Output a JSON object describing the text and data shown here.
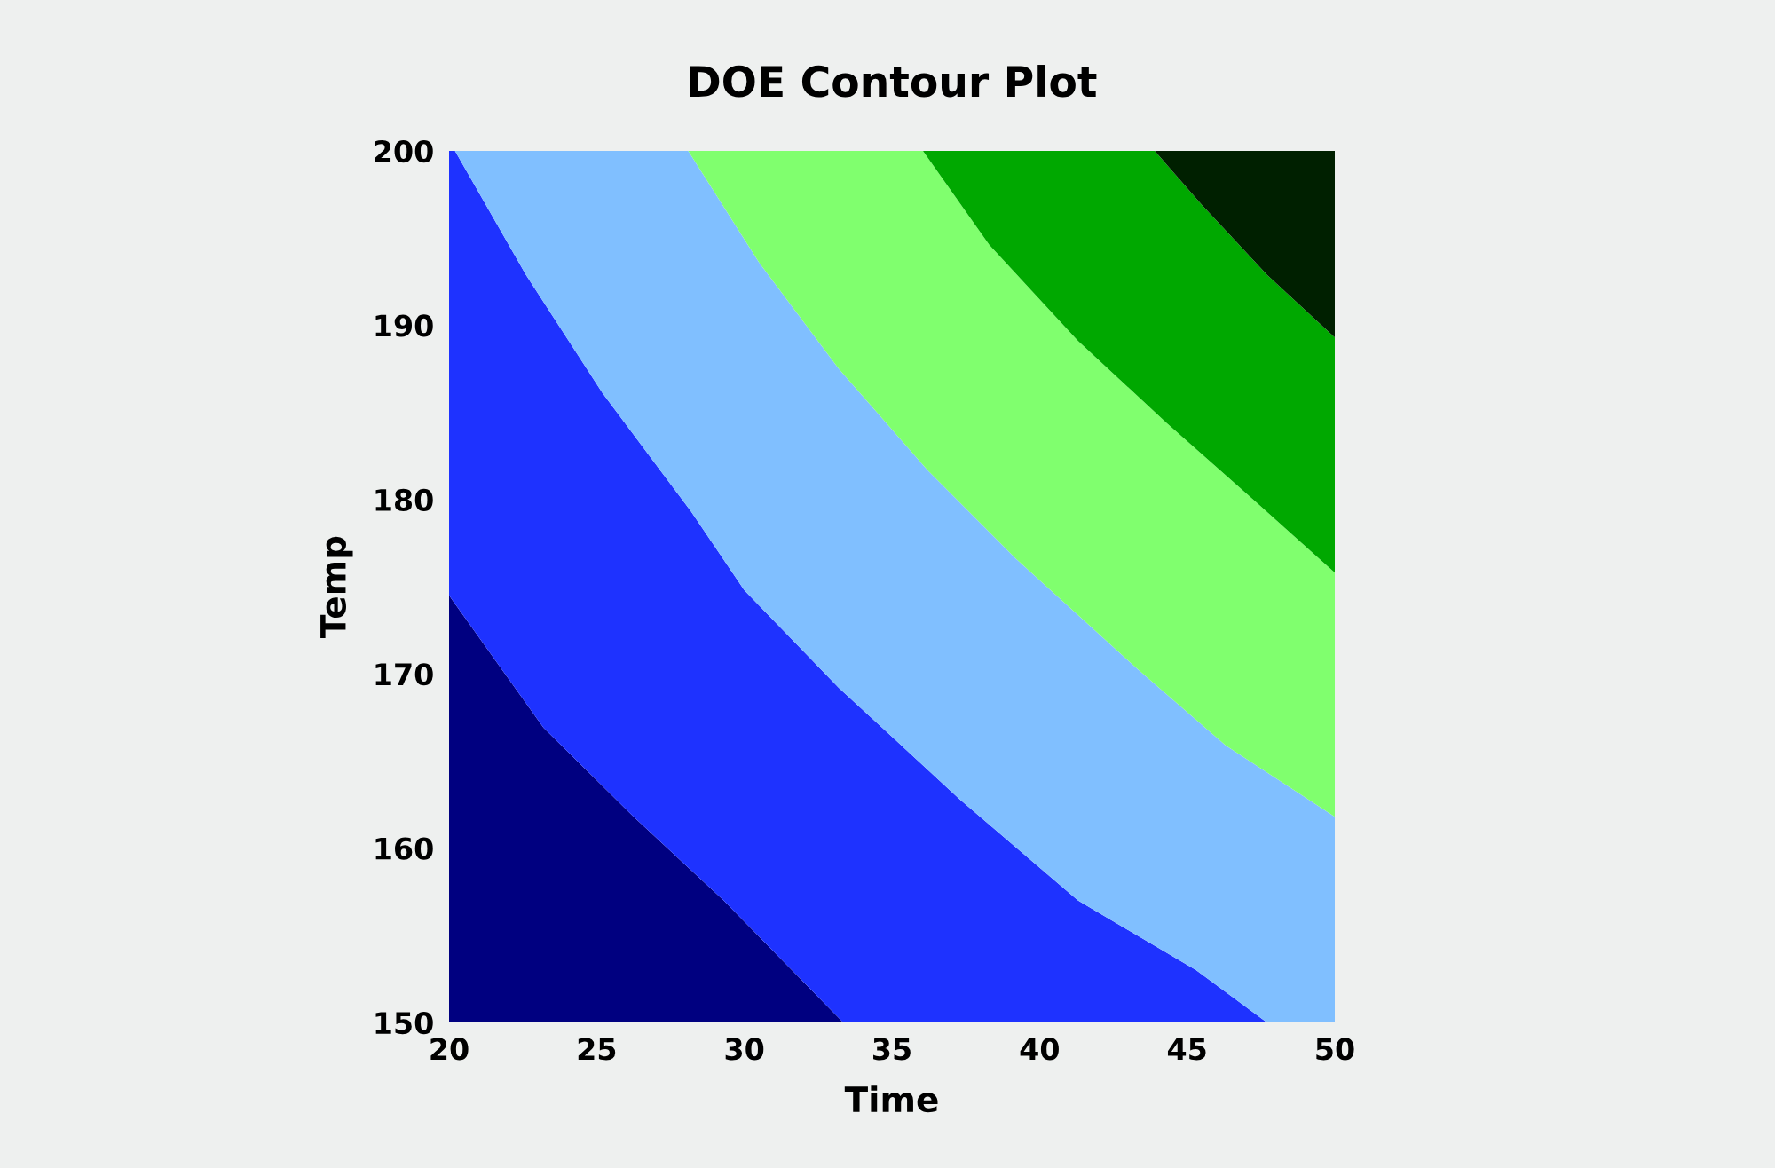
{
  "chart_data": {
    "type": "area",
    "title": "DOE Contour Plot",
    "xlabel": "Time",
    "ylabel": "Temp",
    "xlim": [
      20,
      50
    ],
    "ylim": [
      150,
      200
    ],
    "xticks": [
      20,
      25,
      30,
      35,
      40,
      45,
      50
    ],
    "yticks": [
      150,
      160,
      170,
      180,
      190,
      200
    ],
    "grid": false,
    "legend": false,
    "series": [
      {
        "color": "#000080",
        "x": [
          20,
          20,
          23.2,
          26.25,
          29.3,
          33.35
        ],
        "values": [
          150,
          174.5,
          166.9,
          161.8,
          157.0,
          150
        ]
      },
      {
        "color": "#1e32ff",
        "x": [
          20,
          23.2,
          26.25,
          29.3,
          33.35,
          47.7,
          45.3,
          41.3,
          37.3,
          33.2,
          30.0,
          28.2,
          25.2,
          22.6,
          20.2,
          20
        ],
        "values": [
          174.5,
          166.9,
          161.8,
          157.0,
          150,
          150,
          153.0,
          157.0,
          162.8,
          169.2,
          174.8,
          179.3,
          186.1,
          192.9,
          200,
          200
        ]
      },
      {
        "color": "#80bfff",
        "x": [
          20.2,
          22.6,
          25.2,
          28.2,
          30.0,
          33.2,
          37.3,
          41.3,
          45.3,
          47.7,
          50,
          50,
          46.3,
          43.3,
          39.2,
          36.2,
          33.2,
          30.5,
          28.1
        ],
        "values": [
          200,
          192.9,
          186.1,
          179.3,
          174.8,
          169.2,
          162.8,
          157.0,
          153.0,
          150,
          150,
          161.8,
          165.9,
          170.3,
          176.6,
          181.7,
          187.5,
          193.6,
          200
        ]
      },
      {
        "color": "#80ff6e",
        "x": [
          28.1,
          30.5,
          33.2,
          36.2,
          39.2,
          43.3,
          46.3,
          50,
          50,
          47.3,
          44.3,
          41.3,
          38.3,
          36.05
        ],
        "values": [
          200,
          193.6,
          187.5,
          181.7,
          176.6,
          170.3,
          165.9,
          161.8,
          175.8,
          179.9,
          184.4,
          189.1,
          194.6,
          200
        ]
      },
      {
        "color": "#00a800",
        "x": [
          36.05,
          38.3,
          41.3,
          44.3,
          47.3,
          50,
          50,
          47.7,
          45.5,
          43.9
        ],
        "values": [
          200,
          194.6,
          189.1,
          184.4,
          179.9,
          175.8,
          189.3,
          192.9,
          196.9,
          200
        ]
      },
      {
        "color": "#002000",
        "x": [
          43.9,
          45.5,
          47.7,
          50,
          50
        ],
        "values": [
          200,
          196.9,
          192.9,
          189.3,
          200
        ]
      }
    ]
  }
}
